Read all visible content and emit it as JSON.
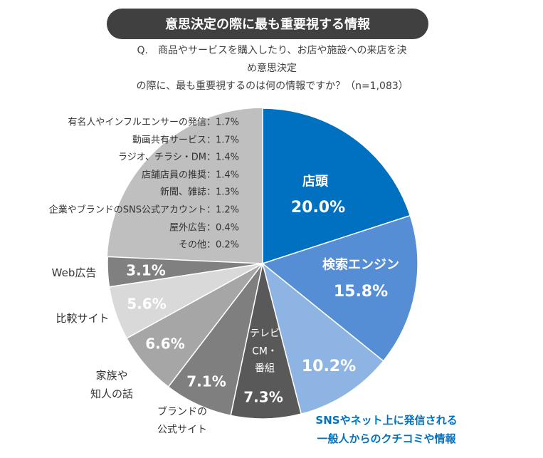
{
  "chart_data": {
    "type": "pie",
    "title": "意思決定の際に最も重要視する情報",
    "subtitle": "Q.　商品やサービスを購入したり、お店や施設への来店を決め意思決定\nの際に、最も重要視するのは何の情報ですか？（n=1,083）",
    "categories": [
      "店頭",
      "検索エンジン",
      "SNSやネット上に発信される\n一般人からのクチコミや情報",
      "テレビ\nCM・\n番組",
      "ブランドの\n公式サイト",
      "家族や\n知人の話",
      "比較サイト",
      "Web広告",
      "有名人やインフルエンサーの発信",
      "動画共有サービス",
      "ラジオ、チラシ・DM",
      "店舗店員の推奨",
      "新聞、雑誌",
      "企業やブランドのSNS公式アカウント",
      "屋外広告",
      "その他",
      null
    ],
    "values": [
      20.0,
      15.8,
      10.2,
      7.3,
      7.1,
      6.6,
      5.6,
      3.1,
      1.7,
      1.7,
      1.4,
      1.4,
      1.3,
      1.2,
      0.4,
      0.2,
      15.0
    ],
    "value_labels": [
      "20.0%",
      "15.8%",
      "10.2%",
      "7.3%",
      "7.1%",
      "6.6%",
      "5.6%",
      "3.1%",
      "：1.7%",
      "：1.7%",
      "：1.4%",
      "：1.4%",
      "：1.3%",
      "：1.2%",
      "：0.4%",
      "：0.2%",
      null
    ],
    "colors": [
      "#0070c0",
      "#558ed5",
      "#8db4e2",
      "#595959",
      "#7f7f7f",
      "#a6a6a6",
      "#d9d9d9",
      "#808080",
      "#bfbfbf",
      "#bfbfbf",
      "#bfbfbf",
      "#bfbfbf",
      "#bfbfbf",
      "#bfbfbf",
      "#bfbfbf",
      "#bfbfbf",
      "#bfbfbf"
    ]
  }
}
